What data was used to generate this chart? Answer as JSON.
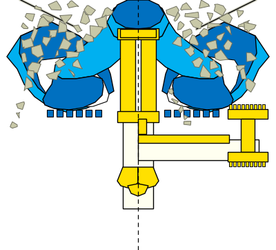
{
  "bg_color": "#ffffff",
  "blue_dark": "#0070C0",
  "blue_light": "#00B0F0",
  "yellow": "#FFE000",
  "cream": "#FFFFF0",
  "outline": "#000000",
  "rock_fill": "#C8C8A8",
  "rock_outline": "#707060",
  "dashes": [
    5,
    4
  ]
}
